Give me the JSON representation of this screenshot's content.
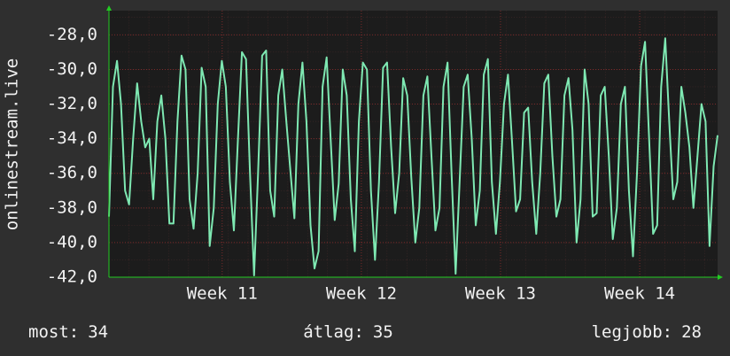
{
  "chart_data": {
    "type": "line",
    "y_label": "onlinestream.live",
    "color": "#7ee8b2",
    "grid": true,
    "ylim": [
      -42,
      -26.6
    ],
    "yticks": [
      {
        "value": -42,
        "label": "-42,0"
      },
      {
        "value": -40,
        "label": "-40,0"
      },
      {
        "value": -38,
        "label": "-38,0"
      },
      {
        "value": -36,
        "label": "-36,0"
      },
      {
        "value": -34,
        "label": "-34,0"
      },
      {
        "value": -32,
        "label": "-32,0"
      },
      {
        "value": -30,
        "label": "-30,0"
      },
      {
        "value": -28,
        "label": "-28,0"
      }
    ],
    "xlim": [
      0,
      150
    ],
    "xticks": [
      {
        "value": 27.9,
        "label": "Week 11"
      },
      {
        "value": 62.2,
        "label": "Week 12"
      },
      {
        "value": 96.5,
        "label": "Week 13"
      },
      {
        "value": 130.8,
        "label": "Week 14"
      }
    ],
    "values": [
      -38.5,
      -31,
      -29.5,
      -32,
      -37,
      -37.8,
      -34,
      -30.8,
      -33,
      -34.5,
      -34,
      -37.5,
      -33,
      -31.5,
      -34,
      -38.9,
      -38.9,
      -33,
      -29.2,
      -30,
      -37.5,
      -39.2,
      -36,
      -29.9,
      -31,
      -40.2,
      -38,
      -32,
      -29.5,
      -31,
      -36.5,
      -39.3,
      -34,
      -29,
      -29.4,
      -36,
      -41.9,
      -36,
      -29.2,
      -28.9,
      -37,
      -38.5,
      -31.5,
      -30,
      -33,
      -35.8,
      -38.6,
      -32,
      -29.6,
      -33,
      -39,
      -41.5,
      -40.5,
      -31,
      -29.3,
      -34,
      -38.7,
      -36.6,
      -30,
      -31.5,
      -37.5,
      -40.5,
      -33,
      -29.6,
      -30,
      -37,
      -41,
      -36.5,
      -29.9,
      -29.6,
      -34.5,
      -38.3,
      -36,
      -30.5,
      -31.5,
      -36.2,
      -40,
      -38,
      -31.5,
      -30.4,
      -35,
      -39.3,
      -38,
      -31,
      -29.6,
      -36,
      -41.8,
      -36.5,
      -31,
      -30.3,
      -34,
      -39,
      -37,
      -30.3,
      -29.4,
      -36.5,
      -39.5,
      -36.5,
      -32,
      -30.3,
      -34.2,
      -38.2,
      -37.5,
      -32.5,
      -32.2,
      -36.5,
      -39.5,
      -36,
      -30.8,
      -30.3,
      -35,
      -38.5,
      -37.5,
      -31.5,
      -30.5,
      -33.5,
      -40,
      -37.5,
      -30,
      -32,
      -38.5,
      -38.3,
      -31.5,
      -31,
      -35,
      -39.8,
      -38,
      -32,
      -31,
      -37,
      -40.8,
      -36,
      -29.8,
      -28.4,
      -34,
      -39.5,
      -39,
      -31,
      -28.2,
      -33,
      -37.5,
      -36.5,
      -31,
      -32.5,
      -34.5,
      -38,
      -35,
      -32,
      -33,
      -40.2,
      -35.6,
      -33.8
    ],
    "legend": [
      {
        "label": "most:",
        "value": 34
      },
      {
        "label": "átlag:",
        "value": 35
      },
      {
        "label": "legjobb:",
        "value": 28
      }
    ]
  }
}
